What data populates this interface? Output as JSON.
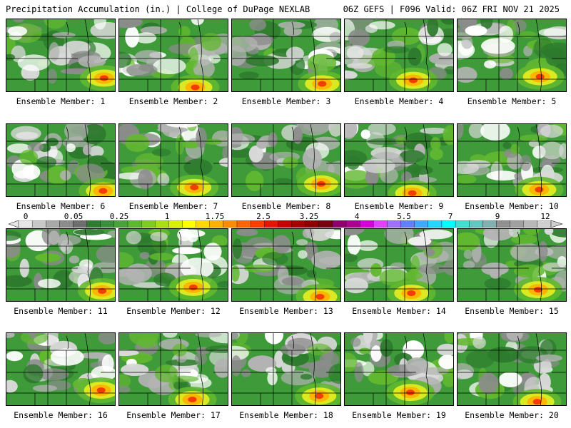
{
  "header": {
    "left_title": "Precipitation Accumulation (in.) | College of DuPage NEXLAB",
    "right_title": "06Z GEFS | F096 Valid: 06Z FRI NOV 21 2025"
  },
  "colorbar": {
    "tick_labels": [
      "0",
      "0.05",
      "0.25",
      "1",
      "1.75",
      "2.5",
      "3.25",
      "4",
      "5.5",
      "7",
      "9",
      "12"
    ],
    "colors": [
      "#e6e6e6",
      "#c8c8c8",
      "#a8a8a8",
      "#8c8c8c",
      "#6e6e6e",
      "#2e7d2e",
      "#3a8f3a",
      "#4aa33a",
      "#5cb82e",
      "#7dcc1e",
      "#a8e010",
      "#d8f000",
      "#ffff00",
      "#ffd800",
      "#ffb000",
      "#ff8c00",
      "#ff6400",
      "#ff3c00",
      "#e81400",
      "#c80000",
      "#a80000",
      "#8c0000",
      "#780010",
      "#90006c",
      "#b00090",
      "#d800d8",
      "#e040ff",
      "#a070ff",
      "#6080ff",
      "#40a8ff",
      "#20d8ff",
      "#00ffff",
      "#40e0d0",
      "#60c8c0",
      "#80b0b0",
      "#909090",
      "#a0a0a0",
      "#b8b8b8",
      "#d0d0d0"
    ]
  },
  "panels": [
    {
      "label": "Ensemble Member: 1"
    },
    {
      "label": "Ensemble Member: 2"
    },
    {
      "label": "Ensemble Member: 3"
    },
    {
      "label": "Ensemble Member: 4"
    },
    {
      "label": "Ensemble Member: 5"
    },
    {
      "label": "Ensemble Member: 6"
    },
    {
      "label": "Ensemble Member: 7"
    },
    {
      "label": "Ensemble Member: 8"
    },
    {
      "label": "Ensemble Member: 9"
    },
    {
      "label": "Ensemble Member: 10"
    },
    {
      "label": "Ensemble Member: 11"
    },
    {
      "label": "Ensemble Member: 12"
    },
    {
      "label": "Ensemble Member: 13"
    },
    {
      "label": "Ensemble Member: 14"
    },
    {
      "label": "Ensemble Member: 15"
    },
    {
      "label": "Ensemble Member: 16"
    },
    {
      "label": "Ensemble Member: 17"
    },
    {
      "label": "Ensemble Member: 18"
    },
    {
      "label": "Ensemble Member: 19"
    },
    {
      "label": "Ensemble Member: 20"
    }
  ],
  "map_colors": {
    "dry": "#ffffff",
    "trace_light": "#d9d9d9",
    "trace_mid": "#b3b3b3",
    "trace_dark": "#8c8c8c",
    "green_dark": "#2d7a2d",
    "green_mid": "#3f9a3a",
    "green_light": "#62b830",
    "yellow": "#e8ee20",
    "orange": "#ffb000",
    "red": "#f03000"
  }
}
